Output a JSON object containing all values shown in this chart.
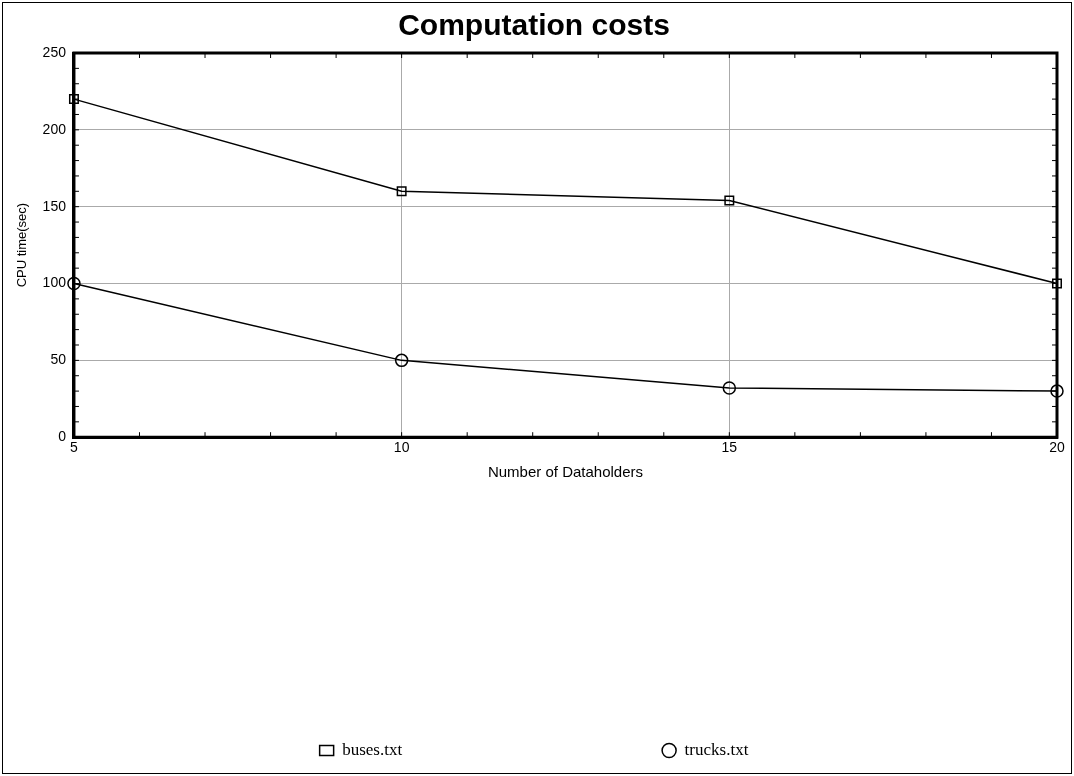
{
  "chart_data": {
    "type": "line",
    "title": "Computation costs",
    "xlabel": "Number of Dataholders",
    "ylabel": "CPU time(sec)",
    "x": [
      5,
      10,
      15,
      20
    ],
    "series": [
      {
        "name": "buses.txt",
        "color": "#000000",
        "marker": "square",
        "values": [
          220,
          160,
          154,
          100
        ]
      },
      {
        "name": "trucks.txt",
        "color": "#000000",
        "marker": "circle",
        "values": [
          100,
          50,
          32,
          30
        ]
      }
    ],
    "xlim": [
      5,
      20
    ],
    "xticks": [
      5,
      10,
      15,
      20
    ],
    "ylim": [
      0,
      250
    ],
    "yticks": [
      0,
      50,
      100,
      150,
      200,
      250
    ],
    "grid": true,
    "legend": "bottom",
    "line_style": "solid"
  }
}
